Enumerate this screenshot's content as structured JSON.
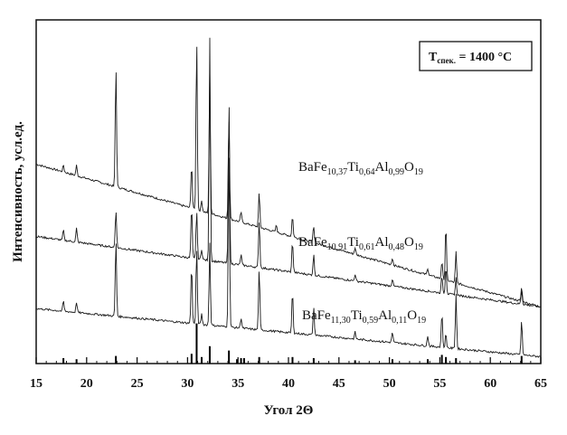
{
  "chart_data": {
    "type": "line",
    "xlabel": "Угол 2Θ",
    "ylabel": "Интенсивность, усл.ед.",
    "xlim": [
      15,
      65
    ],
    "xticks": [
      15,
      20,
      25,
      30,
      35,
      40,
      45,
      50,
      55,
      60,
      65
    ],
    "note": {
      "symbol": "T",
      "subscript": "спек.",
      "rest": " = 1400 °C"
    },
    "series": [
      {
        "name": "BaFe10,37Ti0,64Al0,99O19",
        "label_parts": [
          "BaFe",
          "10,37",
          "Ti",
          "0,64",
          "Al",
          "0,99",
          "O",
          "19"
        ],
        "baseline": {
          "start": 0.58,
          "end": 0.165
        },
        "peaks": [
          [
            17.7,
            0.02
          ],
          [
            19.0,
            0.03
          ],
          [
            22.9,
            0.35
          ],
          [
            30.4,
            0.13
          ],
          [
            30.9,
            0.5
          ],
          [
            31.4,
            0.03
          ],
          [
            32.2,
            0.42
          ],
          [
            34.1,
            0.3
          ],
          [
            35.3,
            0.03
          ],
          [
            37.1,
            0.1
          ],
          [
            38.8,
            0.02
          ],
          [
            40.4,
            0.06
          ],
          [
            42.5,
            0.05
          ],
          [
            46.6,
            0.02
          ],
          [
            50.3,
            0.02
          ],
          [
            53.8,
            0.02
          ],
          [
            55.2,
            0.05
          ],
          [
            55.6,
            0.16
          ],
          [
            56.6,
            0.09
          ],
          [
            63.1,
            0.04
          ]
        ]
      },
      {
        "name": "BaFe10,91Ti0,61Al0,48O19",
        "label_parts": [
          "BaFe",
          "10,91",
          "Ti",
          "0,61",
          "Al",
          "0,48",
          "O",
          "19"
        ],
        "baseline": {
          "start": 0.37,
          "end": 0.165
        },
        "peaks": [
          [
            17.7,
            0.03
          ],
          [
            19.0,
            0.04
          ],
          [
            22.9,
            0.11
          ],
          [
            30.4,
            0.15
          ],
          [
            30.9,
            0.14
          ],
          [
            31.4,
            0.03
          ],
          [
            32.2,
            0.65
          ],
          [
            34.1,
            0.48
          ],
          [
            35.3,
            0.03
          ],
          [
            37.1,
            0.14
          ],
          [
            40.4,
            0.09
          ],
          [
            42.5,
            0.06
          ],
          [
            46.6,
            0.02
          ],
          [
            50.3,
            0.02
          ],
          [
            55.2,
            0.05
          ],
          [
            55.6,
            0.08
          ],
          [
            56.6,
            0.05
          ],
          [
            63.1,
            0.04
          ]
        ]
      },
      {
        "name": "BaFe11,30Ti0,59Al0,11O19",
        "label_parts": [
          "BaFe",
          "11,30",
          "Ti",
          "0,59",
          "Al",
          "0,11",
          "O",
          "19"
        ],
        "baseline": {
          "start": 0.16,
          "end": 0.02
        },
        "peaks": [
          [
            17.7,
            0.03
          ],
          [
            19.0,
            0.03
          ],
          [
            22.9,
            0.22
          ],
          [
            30.4,
            0.17
          ],
          [
            30.9,
            0.22
          ],
          [
            31.4,
            0.03
          ],
          [
            32.2,
            0.24
          ],
          [
            34.1,
            0.52
          ],
          [
            35.3,
            0.03
          ],
          [
            37.1,
            0.18
          ],
          [
            40.4,
            0.12
          ],
          [
            42.5,
            0.08
          ],
          [
            46.6,
            0.02
          ],
          [
            50.3,
            0.03
          ],
          [
            53.8,
            0.03
          ],
          [
            55.2,
            0.1
          ],
          [
            55.6,
            0.04
          ],
          [
            56.6,
            0.16
          ],
          [
            63.1,
            0.1
          ]
        ]
      }
    ],
    "reference_lines": [
      [
        17.7,
        0.5
      ],
      [
        19.0,
        0.4
      ],
      [
        22.9,
        0.7
      ],
      [
        30.4,
        0.9
      ],
      [
        30.9,
        3.7
      ],
      [
        31.4,
        0.6
      ],
      [
        32.2,
        1.6
      ],
      [
        34.1,
        1.2
      ],
      [
        34.9,
        0.4
      ],
      [
        35.3,
        0.5
      ],
      [
        35.6,
        0.5
      ],
      [
        37.1,
        0.6
      ],
      [
        40.4,
        0.6
      ],
      [
        42.5,
        0.5
      ],
      [
        46.6,
        0.3
      ],
      [
        50.3,
        0.4
      ],
      [
        53.8,
        0.4
      ],
      [
        55.2,
        0.8
      ],
      [
        55.6,
        0.6
      ],
      [
        56.6,
        0.5
      ],
      [
        63.1,
        0.7
      ]
    ]
  }
}
